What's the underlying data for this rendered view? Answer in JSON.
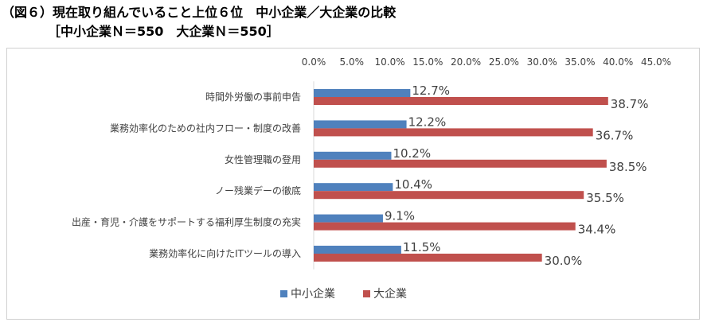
{
  "title": {
    "line1": "（図６）現在取り組んでいること上位６位　中小企業／大企業の比較",
    "line2": "［中小企業Ｎ＝550　大企業Ｎ＝550］"
  },
  "colors": {
    "sme": "#4f81bd",
    "large": "#c0504d"
  },
  "chart_data": {
    "type": "bar",
    "orientation": "horizontal",
    "categories": [
      "時間外労働の事前申告",
      "業務効率化のための社内フロー・制度の改善",
      "女性管理職の登用",
      "ノー残業デーの徹底",
      "出産・育児・介護をサポートする福利厚生制度の充実",
      "業務効率化に向けたITツールの導入"
    ],
    "series": [
      {
        "name": "中小企業",
        "values": [
          12.7,
          12.2,
          10.2,
          10.4,
          9.1,
          11.5
        ],
        "labels": [
          "12.7%",
          "12.2%",
          "10.2%",
          "10.4%",
          "9.1%",
          "11.5%"
        ]
      },
      {
        "name": "大企業",
        "values": [
          38.7,
          36.7,
          38.5,
          35.5,
          34.4,
          30.0
        ],
        "labels": [
          "38.7%",
          "36.7%",
          "38.5%",
          "35.5%",
          "34.4%",
          "30.0%"
        ]
      }
    ],
    "xlim": [
      0,
      45
    ],
    "xticks": [
      "0.0%",
      "5.0%",
      "10.0%",
      "15.0%",
      "20.0%",
      "25.0%",
      "30.0%",
      "35.0%",
      "40.0%",
      "45.0%"
    ],
    "xaxis_position": "top",
    "grid": false,
    "legend_position": "bottom"
  }
}
